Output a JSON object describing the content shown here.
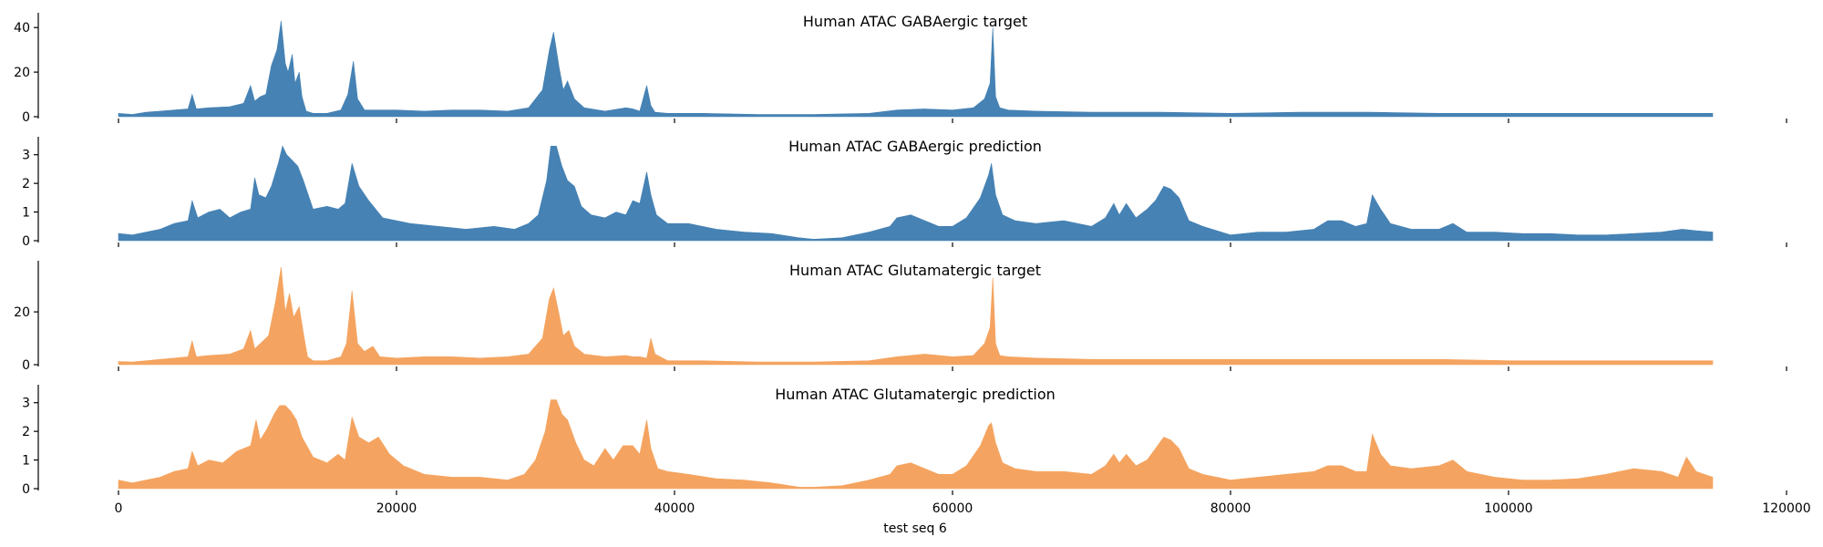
{
  "chart_data": {
    "type": "area",
    "xlabel": "test seq 6",
    "xlim": [
      0,
      120000
    ],
    "data_extent": [
      0,
      114688
    ],
    "x_ticks": [
      0,
      20000,
      40000,
      60000,
      80000,
      100000,
      120000
    ],
    "x_tick_labels": [
      "0",
      "20000",
      "40000",
      "60000",
      "80000",
      "100000",
      "120000"
    ],
    "colors": {
      "gaba": "#4682b4",
      "glut": "#f4a460"
    },
    "panels": [
      {
        "title": "Human ATAC GABAergic target",
        "color": "#4682b4",
        "ylim": [
          0,
          45
        ],
        "y_ticks": [
          0,
          20,
          40
        ],
        "y_tick_labels": [
          "0",
          "20",
          "40"
        ],
        "series": [
          {
            "x": [
              0,
              1000,
              2000,
              3000,
              4000,
              5000,
              5300,
              5600,
              6500,
              8000,
              9000,
              9500,
              9800,
              10200,
              10600,
              11000,
              11400,
              11700,
              12000,
              12200,
              12500,
              12700,
              13000,
              13200,
              13500,
              14000,
              15000,
              16000,
              16500,
              16900,
              17200,
              17700,
              18500,
              20000,
              22000,
              24000,
              26000,
              28000,
              29500,
              30500,
              31000,
              31300,
              31700,
              32000,
              32300,
              32800,
              33500,
              35000,
              36500,
              37000,
              37500,
              38000,
              38300,
              38600,
              39500,
              42000,
              46000,
              50000,
              54000,
              56000,
              58000,
              60000,
              61500,
              62300,
              62700,
              62900,
              63100,
              63400,
              64000,
              66000,
              70000,
              75000,
              80000,
              85000,
              90000,
              95000,
              100000,
              105000,
              110000,
              114688
            ],
            "values": [
              1.5,
              1,
              2,
              2.5,
              3,
              3.5,
              10,
              3.5,
              4,
              4.5,
              6,
              14,
              7,
              9,
              10,
              23,
              30,
              43,
              24,
              20,
              28,
              15,
              20,
              9,
              2.5,
              1.5,
              1.5,
              3,
              10,
              25,
              8,
              3,
              3,
              3,
              2.5,
              3,
              3,
              2.5,
              4,
              12,
              30,
              38,
              22,
              12,
              16,
              8,
              4,
              2.5,
              4,
              3.5,
              2.5,
              14,
              5,
              2,
              1.5,
              1.5,
              1,
              1,
              1.5,
              3,
              3.5,
              3,
              4,
              8,
              15,
              40,
              9,
              4,
              3,
              2.5,
              2,
              2,
              1.5,
              2,
              2,
              1.5,
              1.5,
              1.5,
              1.5,
              1.5
            ]
          }
        ]
      },
      {
        "title": "Human ATAC GABAergic prediction",
        "color": "#4682b4",
        "ylim": [
          0,
          3.5
        ],
        "y_ticks": [
          0,
          1,
          2,
          3
        ],
        "y_tick_labels": [
          "0",
          "1",
          "2",
          "3"
        ],
        "series": [
          {
            "x": [
              0,
              1000,
              2000,
              3000,
              4000,
              5000,
              5300,
              5700,
              6500,
              7300,
              8000,
              8800,
              9500,
              9800,
              10100,
              10600,
              11000,
              11500,
              11800,
              12100,
              12500,
              12900,
              13300,
              14000,
              15000,
              15800,
              16300,
              16800,
              17300,
              18000,
              19000,
              20000,
              21000,
              23000,
              25000,
              27000,
              28500,
              29500,
              30200,
              30800,
              31100,
              31500,
              31900,
              32300,
              32800,
              33300,
              34000,
              35000,
              35800,
              36500,
              37000,
              37500,
              38000,
              38300,
              38700,
              39500,
              41000,
              43000,
              45000,
              47000,
              49000,
              50000,
              52000,
              54000,
              55500,
              56000,
              57000,
              58000,
              59000,
              60000,
              61000,
              62000,
              62600,
              62800,
              63100,
              63600,
              64500,
              66000,
              68000,
              70000,
              71000,
              71600,
              72000,
              72500,
              73200,
              74000,
              74600,
              75200,
              75700,
              76300,
              77000,
              78000,
              80000,
              82000,
              84000,
              86000,
              87000,
              88000,
              89000,
              89800,
              90200,
              90800,
              91500,
              93000,
              95000,
              96000,
              97000,
              99000,
              101000,
              103000,
              105000,
              107000,
              109000,
              111000,
              112500,
              113500,
              114688
            ],
            "values": [
              0.25,
              0.2,
              0.3,
              0.4,
              0.6,
              0.7,
              1.4,
              0.8,
              1.0,
              1.1,
              0.8,
              1.0,
              1.1,
              2.2,
              1.6,
              1.5,
              1.9,
              2.7,
              3.3,
              3.0,
              2.8,
              2.6,
              2.1,
              1.1,
              1.2,
              1.1,
              1.3,
              2.7,
              1.9,
              1.4,
              0.8,
              0.7,
              0.6,
              0.5,
              0.4,
              0.5,
              0.4,
              0.6,
              0.9,
              2.1,
              3.3,
              3.3,
              2.6,
              2.1,
              1.9,
              1.2,
              0.9,
              0.8,
              1.0,
              0.9,
              1.4,
              1.3,
              2.4,
              1.6,
              0.9,
              0.6,
              0.6,
              0.4,
              0.3,
              0.25,
              0.1,
              0.05,
              0.1,
              0.3,
              0.5,
              0.8,
              0.9,
              0.7,
              0.5,
              0.5,
              0.8,
              1.5,
              2.3,
              2.7,
              1.6,
              0.9,
              0.7,
              0.6,
              0.7,
              0.5,
              0.8,
              1.3,
              0.9,
              1.3,
              0.8,
              1.1,
              1.4,
              1.9,
              1.8,
              1.5,
              0.7,
              0.5,
              0.2,
              0.3,
              0.3,
              0.4,
              0.7,
              0.7,
              0.5,
              0.6,
              1.6,
              1.1,
              0.6,
              0.4,
              0.4,
              0.6,
              0.3,
              0.3,
              0.25,
              0.25,
              0.2,
              0.2,
              0.25,
              0.3,
              0.4,
              0.35,
              0.3
            ]
          }
        ]
      },
      {
        "title": "Human ATAC Glutamatergic target",
        "color": "#f4a460",
        "ylim": [
          0,
          38
        ],
        "y_ticks": [
          0,
          20
        ],
        "y_tick_labels": [
          "0",
          "20"
        ],
        "series": [
          {
            "x": [
              0,
              1000,
              2000,
              3000,
              4000,
              5000,
              5300,
              5600,
              6500,
              8000,
              9000,
              9500,
              9800,
              10200,
              10800,
              11300,
              11700,
              12000,
              12300,
              12600,
              13000,
              13300,
              13600,
              14000,
              15000,
              16000,
              16400,
              16800,
              17200,
              17700,
              18300,
              18800,
              20000,
              22000,
              24000,
              26000,
              28000,
              29500,
              30500,
              31000,
              31300,
              31700,
              32000,
              32400,
              32800,
              33500,
              35000,
              36500,
              37000,
              37500,
              38000,
              38300,
              38600,
              39500,
              42000,
              46000,
              50000,
              54000,
              56000,
              58000,
              60000,
              61500,
              62300,
              62700,
              62900,
              63100,
              63400,
              64000,
              66000,
              70000,
              75000,
              80000,
              85000,
              90000,
              95000,
              100000,
              105000,
              110000,
              114688
            ],
            "values": [
              1.2,
              1,
              1.5,
              2,
              2.5,
              3,
              9,
              3,
              3.5,
              4,
              6,
              13,
              6,
              8,
              11,
              24,
              37,
              20,
              27,
              18,
              22,
              12,
              3,
              1.5,
              1.5,
              3,
              8,
              28,
              8,
              5,
              7,
              3,
              2.5,
              3,
              3,
              2.5,
              3,
              4,
              10,
              25,
              29,
              19,
              11,
              13,
              7,
              4,
              3,
              3.5,
              3,
              3,
              2.5,
              10,
              4,
              1.5,
              1.5,
              1,
              1,
              1.5,
              3,
              4,
              3,
              3.5,
              8,
              14,
              33,
              8,
              3.5,
              3,
              2.5,
              2,
              2,
              2,
              2,
              2,
              2,
              1.5,
              1.5,
              1.5,
              1.5
            ]
          }
        ]
      },
      {
        "title": "Human ATAC Glutamatergic prediction",
        "color": "#f4a460",
        "ylim": [
          0,
          3.5
        ],
        "y_ticks": [
          0,
          1,
          2,
          3
        ],
        "y_tick_labels": [
          "0",
          "1",
          "2",
          "3"
        ],
        "series": [
          {
            "x": [
              0,
              1000,
              2000,
              3000,
              4000,
              5000,
              5300,
              5700,
              6500,
              7500,
              8500,
              9500,
              9900,
              10200,
              10700,
              11200,
              11600,
              12000,
              12400,
              12800,
              13200,
              14000,
              15000,
              15800,
              16300,
              16800,
              17300,
              18000,
              18700,
              19500,
              20500,
              22000,
              24000,
              26000,
              28000,
              29200,
              30000,
              30700,
              31100,
              31500,
              31900,
              32300,
              32900,
              33500,
              34200,
              35000,
              35600,
              36300,
              37000,
              37500,
              38000,
              38300,
              38800,
              39500,
              41000,
              43000,
              45000,
              47000,
              49000,
              50000,
              52000,
              54000,
              55500,
              56000,
              57000,
              58000,
              59000,
              60000,
              61000,
              62000,
              62600,
              62800,
              63100,
              63600,
              64500,
              66000,
              68000,
              70000,
              71000,
              71600,
              72000,
              72500,
              73200,
              74000,
              74600,
              75200,
              75700,
              76300,
              77000,
              78000,
              80000,
              82000,
              84000,
              86000,
              87000,
              88000,
              89000,
              89800,
              90200,
              90800,
              91500,
              93000,
              95000,
              96000,
              97000,
              99000,
              101000,
              103000,
              105000,
              107000,
              109000,
              111000,
              112200,
              112800,
              113500,
              114688
            ],
            "values": [
              0.3,
              0.2,
              0.3,
              0.4,
              0.6,
              0.7,
              1.3,
              0.8,
              1.0,
              0.9,
              1.3,
              1.5,
              2.4,
              1.7,
              2.1,
              2.6,
              2.9,
              2.9,
              2.7,
              2.4,
              1.8,
              1.1,
              0.9,
              1.2,
              1.0,
              2.5,
              1.8,
              1.6,
              1.8,
              1.2,
              0.8,
              0.5,
              0.4,
              0.4,
              0.3,
              0.5,
              1.0,
              2.0,
              3.1,
              3.1,
              2.6,
              2.4,
              1.6,
              1.0,
              0.8,
              1.4,
              1.0,
              1.5,
              1.5,
              1.2,
              2.4,
              1.4,
              0.7,
              0.6,
              0.5,
              0.35,
              0.3,
              0.2,
              0.05,
              0.05,
              0.1,
              0.3,
              0.5,
              0.8,
              0.9,
              0.7,
              0.5,
              0.5,
              0.8,
              1.5,
              2.2,
              2.3,
              1.6,
              0.9,
              0.7,
              0.6,
              0.6,
              0.5,
              0.8,
              1.2,
              0.9,
              1.2,
              0.8,
              1.0,
              1.4,
              1.8,
              1.7,
              1.4,
              0.7,
              0.5,
              0.3,
              0.4,
              0.5,
              0.6,
              0.8,
              0.8,
              0.6,
              0.6,
              1.9,
              1.2,
              0.8,
              0.7,
              0.8,
              1.0,
              0.6,
              0.4,
              0.3,
              0.3,
              0.35,
              0.5,
              0.7,
              0.6,
              0.4,
              1.1,
              0.6,
              0.4
            ]
          }
        ]
      }
    ]
  }
}
